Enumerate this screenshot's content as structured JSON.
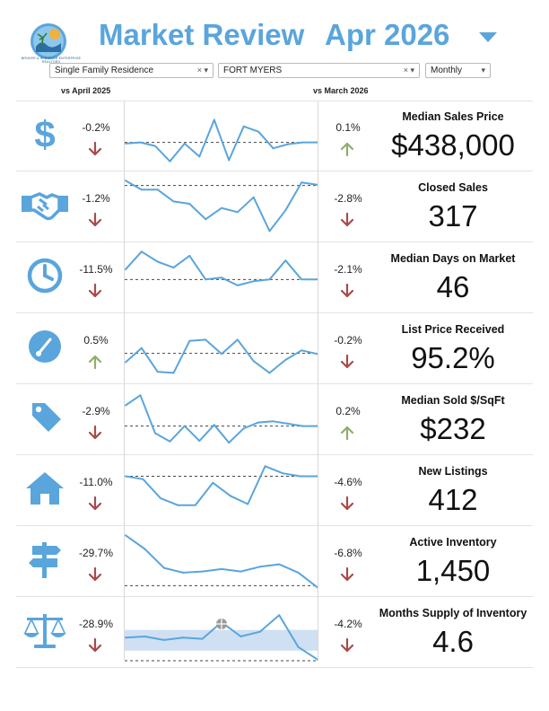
{
  "logo": {
    "text": "BROKER & SPRINGER ENTERPRISE REALTORS"
  },
  "header": {
    "title": "Market Review",
    "date": "Apr 2026",
    "caret_icon": "caret-down-icon"
  },
  "filters": {
    "property_type": "Single Family Residence",
    "city": "FORT MYERS",
    "period": "Monthly"
  },
  "columns": {
    "yoy": "vs April 2025",
    "mom": "vs March 2026"
  },
  "colors": {
    "accent": "#5aa5dc",
    "down": "#a84a4a",
    "up": "#8fae6a",
    "line": "#5aa5dc",
    "band": "#cfe0f3",
    "dashed": "#444444"
  },
  "metrics": [
    {
      "label": "Median Sales Price",
      "value": "$438,000",
      "icon": "dollar-icon",
      "yoy": "-0.2%",
      "yoy_dir": "down",
      "mom": "0.1%",
      "mom_dir": "up"
    },
    {
      "label": "Closed Sales",
      "value": "317",
      "icon": "handshake-icon",
      "yoy": "-1.2%",
      "yoy_dir": "down",
      "mom": "-2.8%",
      "mom_dir": "down"
    },
    {
      "label": "Median Days on Market",
      "value": "46",
      "icon": "clock-icon",
      "yoy": "-11.5%",
      "yoy_dir": "down",
      "mom": "-2.1%",
      "mom_dir": "down"
    },
    {
      "label": "List Price Received",
      "value": "95.2%",
      "icon": "gauge-icon",
      "yoy": "0.5%",
      "yoy_dir": "up",
      "mom": "-0.2%",
      "mom_dir": "down"
    },
    {
      "label": "Median Sold $/SqFt",
      "value": "$232",
      "icon": "price-tag-icon",
      "yoy": "-2.9%",
      "yoy_dir": "down",
      "mom": "0.2%",
      "mom_dir": "up"
    },
    {
      "label": "New Listings",
      "value": "412",
      "icon": "house-icon",
      "yoy": "-11.0%",
      "yoy_dir": "down",
      "mom": "-4.6%",
      "mom_dir": "down"
    },
    {
      "label": "Active Inventory",
      "value": "1,450",
      "icon": "signpost-icon",
      "yoy": "-29.7%",
      "yoy_dir": "down",
      "mom": "-6.8%",
      "mom_dir": "down"
    },
    {
      "label": "Months Supply of Inventory",
      "value": "4.6",
      "icon": "scales-icon",
      "yoy": "-28.9%",
      "yoy_dir": "down",
      "mom": "-4.2%",
      "mom_dir": "down"
    }
  ],
  "chart_data": [
    {
      "type": "line",
      "metric": "Median Sales Price",
      "values": [
        0.62,
        0.6,
        0.66,
        0.92,
        0.62,
        0.84,
        0.22,
        0.9,
        0.33,
        0.42,
        0.7,
        0.63,
        0.6,
        0.6
      ],
      "reference": 0.6,
      "reference_style": "dashed"
    },
    {
      "type": "line",
      "metric": "Closed Sales",
      "values": [
        0.05,
        0.2,
        0.2,
        0.4,
        0.44,
        0.7,
        0.51,
        0.58,
        0.33,
        0.9,
        0.55,
        0.08,
        0.12
      ],
      "reference": 0.13,
      "reference_style": "dashed"
    },
    {
      "type": "line",
      "metric": "Median Days on Market",
      "values": [
        0.35,
        0.05,
        0.22,
        0.32,
        0.12,
        0.52,
        0.49,
        0.62,
        0.55,
        0.52,
        0.2,
        0.52,
        0.52
      ],
      "reference": 0.52,
      "reference_style": "dashed"
    },
    {
      "type": "line",
      "metric": "List Price Received",
      "values": [
        0.72,
        0.48,
        0.88,
        0.9,
        0.36,
        0.34,
        0.58,
        0.34,
        0.7,
        0.9,
        0.68,
        0.52,
        0.58
      ],
      "reference": 0.57,
      "reference_style": "dashed"
    },
    {
      "type": "line",
      "metric": "Median Sold $/SqFt",
      "values": [
        0.25,
        0.08,
        0.72,
        0.86,
        0.6,
        0.85,
        0.58,
        0.88,
        0.64,
        0.54,
        0.52,
        0.56,
        0.6,
        0.6
      ],
      "reference": 0.6,
      "reference_style": "dashed"
    },
    {
      "type": "line",
      "metric": "New Listings",
      "values": [
        0.25,
        0.3,
        0.62,
        0.74,
        0.74,
        0.36,
        0.58,
        0.72,
        0.08,
        0.2,
        0.25,
        0.25
      ],
      "reference": 0.25,
      "reference_style": "dashed"
    },
    {
      "type": "line",
      "metric": "Active Inventory",
      "values": [
        0.05,
        0.28,
        0.6,
        0.68,
        0.66,
        0.62,
        0.66,
        0.58,
        0.54,
        0.68,
        0.93
      ],
      "reference": 0.9,
      "reference_style": "dashed"
    },
    {
      "type": "line",
      "metric": "Months Supply of Inventory",
      "values": [
        0.58,
        0.56,
        0.62,
        0.58,
        0.6,
        0.32,
        0.56,
        0.48,
        0.2,
        0.74,
        0.95
      ],
      "reference": 0.97,
      "reference_style": "dashed",
      "band": [
        0.45,
        0.8
      ]
    }
  ]
}
